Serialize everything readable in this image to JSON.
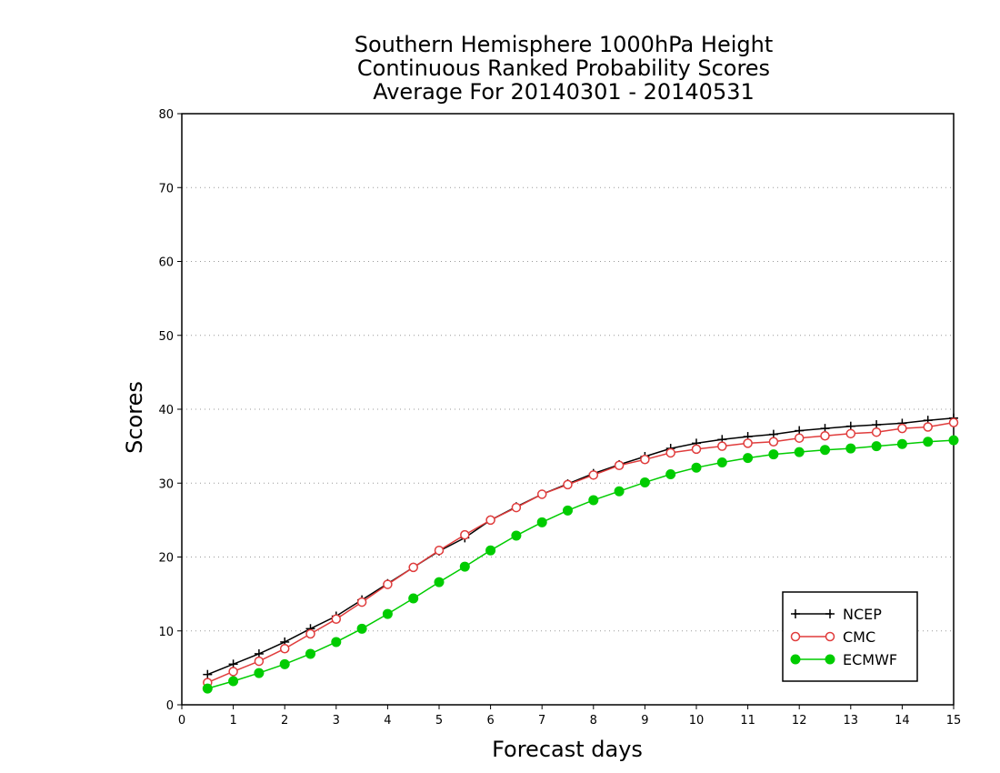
{
  "chart_data": {
    "type": "line",
    "title": [
      "Southern Hemisphere 1000hPa Height",
      "Continuous Ranked Probability Scores",
      "Average For 20140301 - 20140531"
    ],
    "xlabel": "Forecast days",
    "ylabel": "Scores",
    "xlim": [
      0,
      15
    ],
    "ylim": [
      0,
      80
    ],
    "xticks": [
      0,
      1,
      2,
      3,
      4,
      5,
      6,
      7,
      8,
      9,
      10,
      11,
      12,
      13,
      14,
      15
    ],
    "yticks": [
      0,
      10,
      20,
      30,
      40,
      50,
      60,
      70,
      80
    ],
    "grid": "horizontal dotted",
    "legend_position": "bottom-right",
    "x": [
      0.5,
      1,
      1.5,
      2,
      2.5,
      3,
      3.5,
      4,
      4.5,
      5,
      5.5,
      6,
      6.5,
      7,
      7.5,
      8,
      8.5,
      9,
      9.5,
      10,
      10.5,
      11,
      11.5,
      12,
      12.5,
      13,
      13.5,
      14,
      14.5,
      15
    ],
    "series": [
      {
        "name": "NCEP",
        "color": "#000000",
        "marker": "plus",
        "values": [
          4.1,
          5.5,
          6.9,
          8.5,
          10.3,
          12.0,
          14.2,
          16.4,
          18.6,
          20.8,
          22.6,
          25.0,
          26.8,
          28.5,
          29.9,
          31.3,
          32.5,
          33.6,
          34.7,
          35.4,
          35.9,
          36.3,
          36.6,
          37.1,
          37.4,
          37.7,
          37.9,
          38.1,
          38.5,
          38.8
        ]
      },
      {
        "name": "CMC",
        "color": "#e03c3c",
        "marker": "open-circle",
        "values": [
          3.0,
          4.5,
          5.9,
          7.6,
          9.6,
          11.6,
          13.9,
          16.3,
          18.6,
          20.9,
          23.0,
          25.0,
          26.7,
          28.5,
          29.8,
          31.1,
          32.4,
          33.2,
          34.1,
          34.6,
          35.0,
          35.4,
          35.6,
          36.1,
          36.4,
          36.7,
          36.9,
          37.4,
          37.6,
          38.2
        ]
      },
      {
        "name": "ECMWF",
        "color": "#00cc00",
        "marker": "filled-circle",
        "values": [
          2.2,
          3.2,
          4.3,
          5.5,
          6.9,
          8.5,
          10.3,
          12.3,
          14.4,
          16.6,
          18.7,
          20.9,
          22.9,
          24.7,
          26.3,
          27.7,
          28.9,
          30.1,
          31.2,
          32.1,
          32.8,
          33.4,
          33.9,
          34.2,
          34.5,
          34.7,
          35.0,
          35.3,
          35.6,
          35.8
        ]
      }
    ]
  }
}
